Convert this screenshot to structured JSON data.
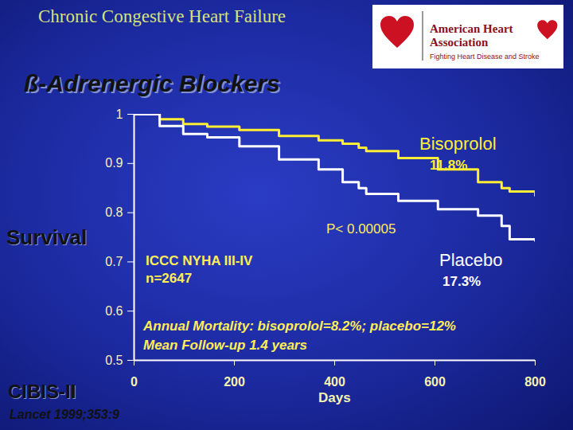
{
  "chart_data": {
    "type": "line",
    "title": "ß-Adrenergic Blockers",
    "x_label": "Days",
    "y_label": "Survival",
    "x": [
      0,
      51,
      98,
      146,
      210,
      289,
      368,
      416,
      448,
      463,
      527,
      606,
      686,
      733,
      749,
      800
    ],
    "series": [
      {
        "name": "Bisoprolol",
        "color": "#ffee33",
        "values": [
          1,
          0.99,
          0.98,
          0.975,
          0.968,
          0.956,
          0.947,
          0.94,
          0.932,
          0.925,
          0.911,
          0.888,
          0.862,
          0.85,
          0.843,
          0.835
        ]
      },
      {
        "name": "Placebo",
        "color": "#ffffff",
        "values": [
          1,
          0.976,
          0.96,
          0.953,
          0.935,
          0.908,
          0.888,
          0.862,
          0.85,
          0.838,
          0.824,
          0.807,
          0.794,
          0.773,
          0.746,
          0.743
        ]
      }
    ],
    "line_style": "step",
    "xlim": [
      0,
      800
    ],
    "xticks": [
      0,
      200,
      400,
      600,
      800
    ],
    "ylim": [
      0.5,
      1
    ],
    "yticks": [
      0.5,
      0.6,
      0.7,
      0.8,
      0.9,
      1
    ],
    "annotations": {
      "header": "Chronic Congestive Heart Failure",
      "org": "American Heart Association",
      "org_tagline": "Fighting Heart Disease and Stroke",
      "bisoprolol_mortality": "11.8%",
      "placebo_mortality": "17.3%",
      "p_value": "P< 0.00005",
      "population": "ICCC NYHA III-IV",
      "n": "n=2647",
      "annual_mortality": "Annual Mortality: bisoprolol=8.2%; placebo=12%",
      "follow_up": "Mean Follow-up 1.4 years",
      "study": "CIBIS-II",
      "reference": "Lancet 1999;353:9"
    }
  }
}
